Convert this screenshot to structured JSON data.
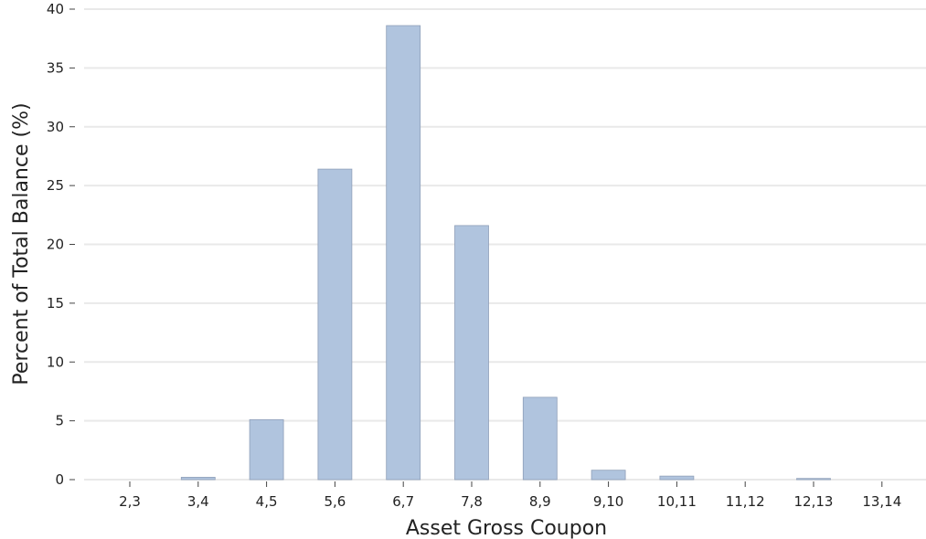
{
  "chart_data": {
    "type": "bar",
    "categories": [
      "2,3",
      "3,4",
      "4,5",
      "5,6",
      "6,7",
      "7,8",
      "8,9",
      "9,10",
      "10,11",
      "11,12",
      "12,13",
      "13,14"
    ],
    "values": [
      0.0,
      0.2,
      5.1,
      26.4,
      38.6,
      21.6,
      7.0,
      0.8,
      0.3,
      0.0,
      0.1,
      0.0
    ],
    "title": "",
    "xlabel": "Asset Gross Coupon",
    "ylabel": "Percent of Total Balance (%)",
    "ylim": [
      0,
      40
    ],
    "yticks": [
      0,
      5,
      10,
      15,
      20,
      25,
      30,
      35,
      40
    ],
    "grid": "horizontal",
    "bar_color": "#b0c4de",
    "bar_edge_color": "#8f9fb8"
  }
}
